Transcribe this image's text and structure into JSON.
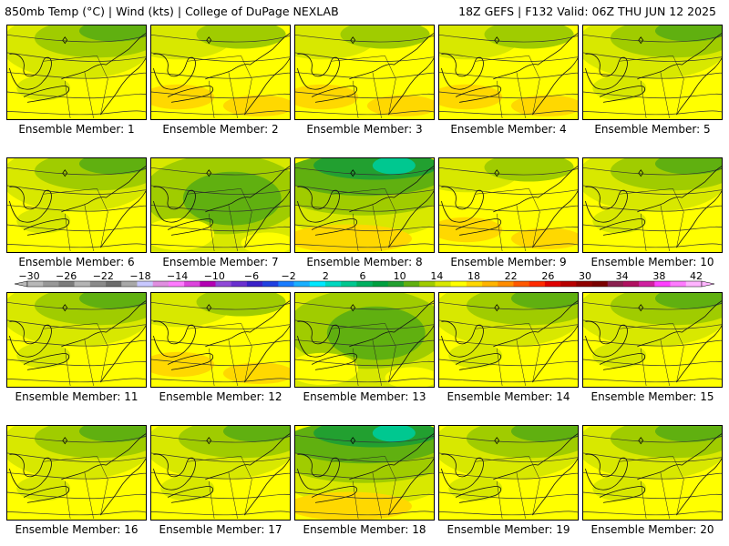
{
  "header": {
    "left": "850mb Temp (°C) | Wind (kts) | College of DuPage NEXLAB",
    "right": "18Z GEFS | F132 Valid: 06Z THU JUN 12 2025"
  },
  "colorbar": {
    "labels": [
      "-30",
      "-26",
      "-22",
      "-18",
      "-14",
      "-10",
      "-6",
      "-2",
      "2",
      "6",
      "10",
      "14",
      "18",
      "22",
      "26",
      "30",
      "34",
      "38",
      "42"
    ],
    "colors": [
      "#b8b8b8",
      "#989898",
      "#7c7c7c",
      "#b4b4b4",
      "#8a8a8a",
      "#6c6c6c",
      "#a8a8a8",
      "#c8c8ff",
      "#e08ee0",
      "#ff7aff",
      "#dd44dd",
      "#b400b4",
      "#9048d8",
      "#6a30d0",
      "#3a20c8",
      "#2040e0",
      "#1a7cff",
      "#1ab0ff",
      "#00e8ff",
      "#00d8c0",
      "#00c890",
      "#00b060",
      "#00a040",
      "#22a030",
      "#60b010",
      "#a0cc00",
      "#d8e800",
      "#ffff00",
      "#ffd800",
      "#ffb400",
      "#ff8c00",
      "#ff5800",
      "#ff2a00",
      "#e00000",
      "#b80000",
      "#900000",
      "#7a0000",
      "#8a2050",
      "#b01060",
      "#d020a0",
      "#ff40ff",
      "#ff7aff",
      "#ffb4ff"
    ]
  },
  "members": [
    {
      "label": "Ensemble Member: 1",
      "theme": "mid"
    },
    {
      "label": "Ensemble Member: 2",
      "theme": "warm"
    },
    {
      "label": "Ensemble Member: 3",
      "theme": "warm"
    },
    {
      "label": "Ensemble Member: 4",
      "theme": "warm"
    },
    {
      "label": "Ensemble Member: 5",
      "theme": "mid"
    },
    {
      "label": "Ensemble Member: 6",
      "theme": "mid"
    },
    {
      "label": "Ensemble Member: 7",
      "theme": "cool"
    },
    {
      "label": "Ensemble Member: 8",
      "theme": "cold"
    },
    {
      "label": "Ensemble Member: 9",
      "theme": "warm"
    },
    {
      "label": "Ensemble Member: 10",
      "theme": "mid"
    },
    {
      "label": "Ensemble Member: 11",
      "theme": "mid"
    },
    {
      "label": "Ensemble Member: 12",
      "theme": "warm"
    },
    {
      "label": "Ensemble Member: 13",
      "theme": "cool"
    },
    {
      "label": "Ensemble Member: 14",
      "theme": "mid"
    },
    {
      "label": "Ensemble Member: 15",
      "theme": "mid"
    },
    {
      "label": "Ensemble Member: 16",
      "theme": "mid"
    },
    {
      "label": "Ensemble Member: 17",
      "theme": "mid"
    },
    {
      "label": "Ensemble Member: 18",
      "theme": "cold"
    },
    {
      "label": "Ensemble Member: 19",
      "theme": "mid"
    },
    {
      "label": "Ensemble Member: 20",
      "theme": "mid"
    }
  ]
}
